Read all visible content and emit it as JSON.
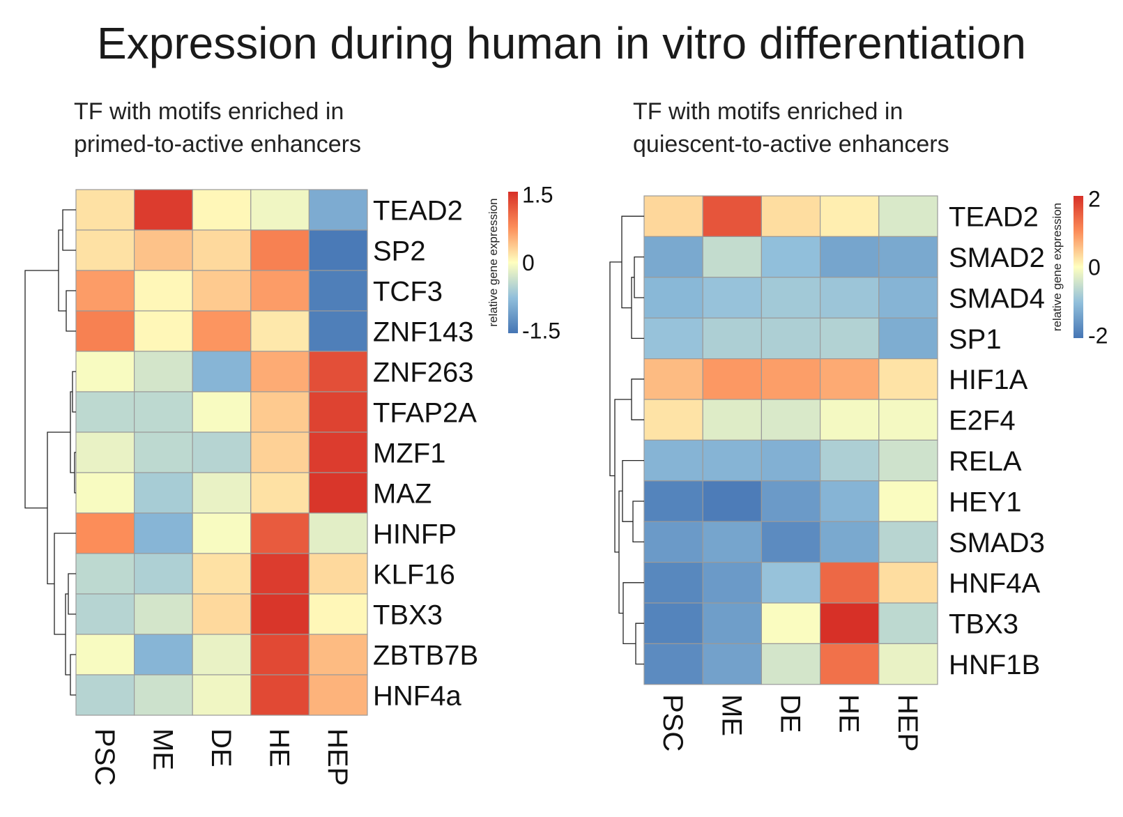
{
  "title": "Expression during human in vitro differentiation",
  "chart_data": [
    {
      "type": "heatmap",
      "subtitle_lines": [
        "TF with motifs enriched in",
        "primed-to-active enhancers"
      ],
      "columns": [
        "PSC",
        "ME",
        "DE",
        "HE",
        "HEP"
      ],
      "rows": [
        "TEAD2",
        "SP2",
        "TCF3",
        "ZNF143",
        "ZNF263",
        "TFAP2A",
        "MZF1",
        "MAZ",
        "HINFP",
        "KLF16",
        "TBX3",
        "ZBTB7B",
        "HNF4a"
      ],
      "values": [
        [
          0.2,
          1.4,
          0.05,
          -0.1,
          -0.95
        ],
        [
          0.2,
          0.4,
          0.25,
          0.85,
          -1.45
        ],
        [
          0.65,
          0.05,
          0.35,
          0.65,
          -1.4
        ],
        [
          0.85,
          0.05,
          0.7,
          0.15,
          -1.4
        ],
        [
          -0.05,
          -0.3,
          -0.85,
          0.55,
          1.25
        ],
        [
          -0.45,
          -0.45,
          -0.05,
          0.35,
          1.35
        ],
        [
          -0.15,
          -0.45,
          -0.5,
          0.3,
          1.4
        ],
        [
          -0.05,
          -0.6,
          -0.15,
          0.2,
          1.45
        ],
        [
          0.75,
          -0.85,
          -0.05,
          1.15,
          -0.2
        ],
        [
          -0.45,
          -0.55,
          0.2,
          1.4,
          0.25
        ],
        [
          -0.5,
          -0.3,
          0.25,
          1.45,
          0.05
        ],
        [
          -0.05,
          -0.85,
          -0.15,
          1.3,
          0.45
        ],
        [
          -0.5,
          -0.35,
          -0.1,
          1.3,
          0.5
        ]
      ],
      "legend": {
        "label": "relative gene expression",
        "ticks": [
          "1.5",
          "0",
          "-1.5"
        ],
        "min": -1.5,
        "max": 1.5
      },
      "dendrogram_leaf_order": "TEAD2,SP2,TCF3,ZNF143 | ZNF263,TFAP2A,MZF1,MAZ | HINFP,KLF16,TBX3,ZBTB7B,HNF4a"
    },
    {
      "type": "heatmap",
      "subtitle_lines": [
        "TF with motifs enriched in",
        "quiescent-to-active enhancers"
      ],
      "columns": [
        "PSC",
        "ME",
        "DE",
        "HE",
        "HEP"
      ],
      "rows": [
        "TEAD2",
        "SMAD2",
        "SMAD4",
        "SP1",
        "HIF1A",
        "E2F4",
        "RELA",
        "HEY1",
        "SMAD3",
        "HNF4A",
        "TBX3",
        "HNF1B"
      ],
      "values": [
        [
          0.35,
          1.6,
          0.3,
          0.15,
          -0.35
        ],
        [
          -1.3,
          -0.55,
          -1.0,
          -1.35,
          -1.3
        ],
        [
          -1.1,
          -0.95,
          -0.85,
          -0.9,
          -1.15
        ],
        [
          -0.95,
          -0.75,
          -0.75,
          -0.7,
          -1.25
        ],
        [
          0.6,
          0.9,
          0.85,
          0.75,
          0.25
        ],
        [
          0.25,
          -0.3,
          -0.35,
          -0.1,
          -0.1
        ],
        [
          -1.15,
          -1.15,
          -1.2,
          -0.75,
          -0.45
        ],
        [
          -1.8,
          -1.9,
          -1.5,
          -1.15,
          -0.05
        ],
        [
          -1.5,
          -1.35,
          -1.7,
          -1.3,
          -0.65
        ],
        [
          -1.75,
          -1.5,
          -0.95,
          1.4,
          0.3
        ],
        [
          -1.8,
          -1.45,
          -0.05,
          2.0,
          -0.6
        ],
        [
          -1.7,
          -1.4,
          -0.4,
          1.3,
          -0.2
        ]
      ],
      "legend": {
        "label": "relative gene expression",
        "ticks": [
          "2",
          "0",
          "-2"
        ],
        "min": -2,
        "max": 2
      },
      "dendrogram_leaf_order": "TEAD2 | SMAD2,SMAD4,SP1 | HIF1A,E2F4 | RELA,HEY1,SMAD3 | HNF4A,TBX3,HNF1B"
    }
  ]
}
